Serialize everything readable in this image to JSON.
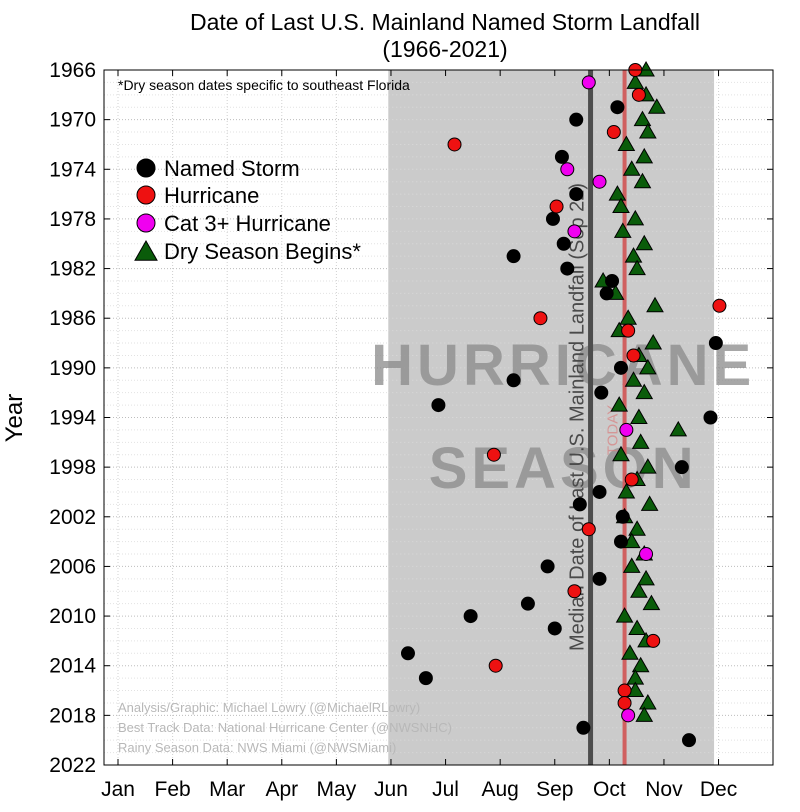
{
  "chart_data": {
    "type": "scatter",
    "title": "Date of Last U.S. Mainland Named Storm Landfall",
    "subtitle": "(1966-2021)",
    "ylabel": "Year",
    "xlabel": "",
    "x_ticks": [
      "Jan",
      "Feb",
      "Mar",
      "Apr",
      "May",
      "Jun",
      "Jul",
      "Aug",
      "Sep",
      "Oct",
      "Nov",
      "Dec"
    ],
    "y_ticks": [
      1966,
      1970,
      1974,
      1978,
      1982,
      1986,
      1990,
      1994,
      1998,
      2002,
      2006,
      2010,
      2014,
      2018,
      2022
    ],
    "ylim": [
      1966,
      2022
    ],
    "y_inverted": true,
    "xlim_day_of_year": [
      1,
      365
    ],
    "grid": true,
    "hurricane_season": {
      "start_day": 152,
      "end_day": 334,
      "label_line1": "HURRICANE",
      "label_line2": "SEASON"
    },
    "median_line": {
      "day": 265,
      "label": "Median Date of Last U.S. Mainland Landfall (Sep 22)"
    },
    "today_line": {
      "day": 284,
      "label": "TODAY"
    },
    "note": "*Dry season dates specific to southeast Florida",
    "legend_position": "upper-left",
    "credits": [
      "Analysis/Graphic: Michael Lowry (@MichaelRLowry)",
      "Best Track Data: National Hurricane Center (@NWSNHC)",
      "Rainy Season Data: NWS Miami (@NWSMiami)"
    ],
    "series": [
      {
        "name": "Named Storm",
        "marker": "circle",
        "color": "#000000",
        "points": [
          [
            1969,
            280
          ],
          [
            1970,
            257
          ],
          [
            1973,
            249
          ],
          [
            1976,
            257
          ],
          [
            1978,
            244
          ],
          [
            1980,
            250
          ],
          [
            1981,
            222
          ],
          [
            1982,
            252
          ],
          [
            1983,
            277
          ],
          [
            1984,
            274
          ],
          [
            1988,
            335
          ],
          [
            1990,
            282
          ],
          [
            1991,
            222
          ],
          [
            1992,
            271
          ],
          [
            1993,
            180
          ],
          [
            1994,
            332
          ],
          [
            1998,
            316
          ],
          [
            2000,
            270
          ],
          [
            2001,
            259
          ],
          [
            2002,
            283
          ],
          [
            2004,
            282
          ],
          [
            2006,
            241
          ],
          [
            2007,
            270
          ],
          [
            2009,
            230
          ],
          [
            2010,
            198
          ],
          [
            2011,
            245
          ],
          [
            2013,
            163
          ],
          [
            2015,
            173
          ],
          [
            2019,
            261
          ],
          [
            2020,
            320
          ]
        ]
      },
      {
        "name": "Hurricane",
        "marker": "circle",
        "color": "#ee1111",
        "points": [
          [
            1966,
            290
          ],
          [
            1968,
            292
          ],
          [
            1971,
            278
          ],
          [
            1972,
            189
          ],
          [
            1977,
            246
          ],
          [
            1985,
            337
          ],
          [
            1986,
            237
          ],
          [
            1987,
            286
          ],
          [
            1989,
            289
          ],
          [
            1997,
            211
          ],
          [
            1999,
            288
          ],
          [
            2003,
            264
          ],
          [
            2008,
            256
          ],
          [
            2012,
            300
          ],
          [
            2014,
            212
          ],
          [
            2016,
            284
          ],
          [
            2017,
            284
          ]
        ]
      },
      {
        "name": "Cat 3+ Hurricane",
        "marker": "circle",
        "color": "#f000f0",
        "points": [
          [
            1967,
            264
          ],
          [
            1974,
            252
          ],
          [
            1975,
            270
          ],
          [
            1979,
            256
          ],
          [
            1995,
            285
          ],
          [
            2005,
            296
          ],
          [
            2018,
            286
          ]
        ]
      },
      {
        "name": "Dry Season Begins*",
        "marker": "triangle",
        "color": "#0a5c0a",
        "points": [
          [
            1966,
            296
          ],
          [
            1967,
            290
          ],
          [
            1968,
            296
          ],
          [
            1969,
            302
          ],
          [
            1970,
            294
          ],
          [
            1971,
            297
          ],
          [
            1972,
            285
          ],
          [
            1973,
            295
          ],
          [
            1974,
            288
          ],
          [
            1975,
            294
          ],
          [
            1976,
            280
          ],
          [
            1977,
            282
          ],
          [
            1978,
            290
          ],
          [
            1979,
            283
          ],
          [
            1980,
            295
          ],
          [
            1981,
            289
          ],
          [
            1982,
            291
          ],
          [
            1983,
            272
          ],
          [
            1984,
            279
          ],
          [
            1985,
            301
          ],
          [
            1986,
            286
          ],
          [
            1987,
            281
          ],
          [
            1988,
            300
          ],
          [
            1989,
            292
          ],
          [
            1990,
            297
          ],
          [
            1991,
            289
          ],
          [
            1992,
            295
          ],
          [
            1993,
            281
          ],
          [
            1994,
            292
          ],
          [
            1995,
            314
          ],
          [
            1996,
            293
          ],
          [
            1997,
            282
          ],
          [
            1998,
            297
          ],
          [
            1999,
            291
          ],
          [
            2000,
            285
          ],
          [
            2001,
            298
          ],
          [
            2002,
            284
          ],
          [
            2003,
            291
          ],
          [
            2004,
            288
          ],
          [
            2005,
            295
          ],
          [
            2006,
            288
          ],
          [
            2007,
            296
          ],
          [
            2008,
            292
          ],
          [
            2009,
            299
          ],
          [
            2010,
            284
          ],
          [
            2011,
            291
          ],
          [
            2012,
            296
          ],
          [
            2013,
            287
          ],
          [
            2014,
            293
          ],
          [
            2015,
            290
          ],
          [
            2016,
            290
          ],
          [
            2017,
            297
          ],
          [
            2018,
            295
          ]
        ]
      }
    ]
  }
}
